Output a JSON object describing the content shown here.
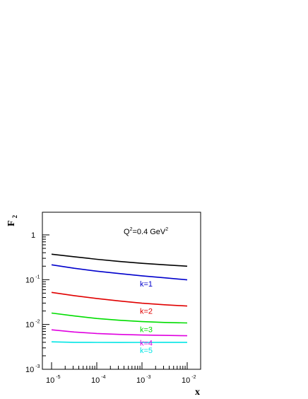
{
  "chart_data": {
    "type": "line",
    "title": "",
    "xlabel": "x",
    "ylabel": "F2",
    "ylabel_sub": "2",
    "ylabel_main": "F",
    "x_scale": "log",
    "y_scale": "log",
    "xlim": [
      1e-05,
      0.01
    ],
    "ylim": [
      0.001,
      1
    ],
    "grid": false,
    "x_ticks": [
      {
        "base": "10",
        "exp": "-5"
      },
      {
        "base": "10",
        "exp": "-4"
      },
      {
        "base": "10",
        "exp": "-3"
      },
      {
        "base": "10",
        "exp": "-2"
      }
    ],
    "y_ticks": [
      {
        "base": "1",
        "exp": ""
      },
      {
        "base": "10",
        "exp": "-1"
      },
      {
        "base": "10",
        "exp": "-2"
      },
      {
        "base": "10",
        "exp": "-3"
      }
    ],
    "annotation": {
      "text_pre": "Q",
      "sup": "2",
      "text_post": "=0.4 GeV",
      "sup2": "2"
    },
    "x": [
      1e-05,
      3.16e-05,
      0.0001,
      0.000316,
      0.001,
      0.00316,
      0.01
    ],
    "series": [
      {
        "label": "",
        "color": "#000000",
        "values": [
          0.37,
          0.325,
          0.285,
          0.255,
          0.232,
          0.215,
          0.2
        ]
      },
      {
        "label": "k=1",
        "color": "#0000cc",
        "values": [
          0.215,
          0.18,
          0.155,
          0.137,
          0.122,
          0.11,
          0.099
        ]
      },
      {
        "label": "k=2",
        "color": "#e00000",
        "values": [
          0.052,
          0.044,
          0.038,
          0.0335,
          0.0298,
          0.0275,
          0.0258
        ]
      },
      {
        "label": "k=3",
        "color": "#00dd00",
        "values": [
          0.018,
          0.0155,
          0.0136,
          0.0124,
          0.0116,
          0.0111,
          0.0108
        ]
      },
      {
        "label": "k=4",
        "color": "#e000e0",
        "values": [
          0.0076,
          0.0068,
          0.0063,
          0.006,
          0.0058,
          0.0057,
          0.0056
        ]
      },
      {
        "label": "k=5",
        "color": "#00e5e5",
        "values": [
          0.0041,
          0.004,
          0.00398,
          0.00397,
          0.00398,
          0.004,
          0.004
        ]
      }
    ]
  }
}
